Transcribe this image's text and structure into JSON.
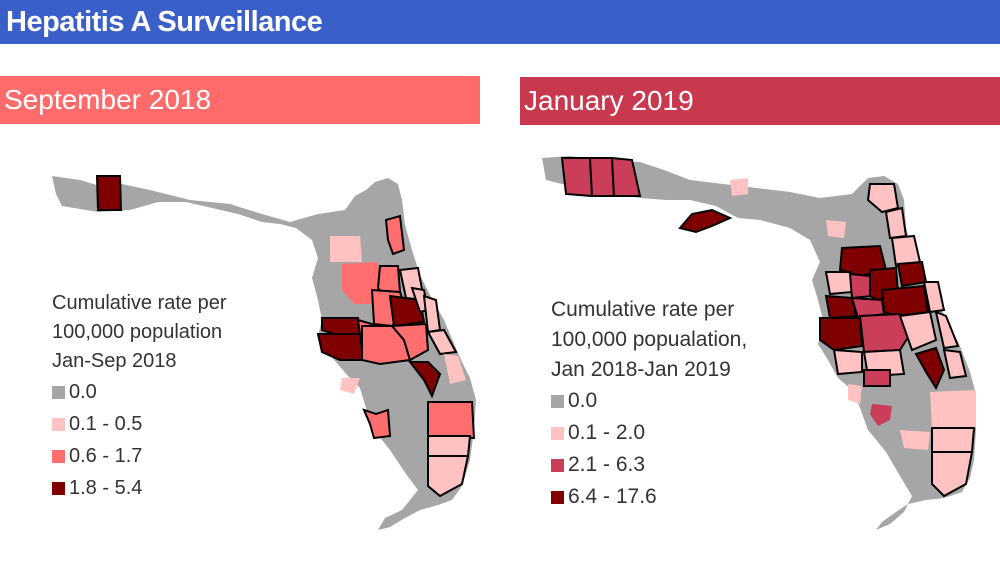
{
  "title": "Hepatitis A Surveillance",
  "colors": {
    "title_bar": "#3a5fc8",
    "left_header": "#ff6b6b",
    "right_header": "#c8384f",
    "none": "#a6a6a6",
    "light": "#ffc2c2",
    "medium": "#ff6f6f",
    "dark": "#7f0000",
    "medium_dark": "#cb3e5a"
  },
  "left_map": {
    "header": "September 2018",
    "legend": {
      "title_lines": [
        "Cumulative rate per",
        "100,000 population",
        "Jan-Sep 2018"
      ],
      "items": [
        {
          "label": "0.0",
          "color": "#a6a6a6"
        },
        {
          "label": "0.1 - 0.5",
          "color": "#ffc2c2"
        },
        {
          "label": "0.6 - 1.7",
          "color": "#ff6f6f"
        },
        {
          "label": "1.8 - 5.4",
          "color": "#7f0000"
        }
      ]
    }
  },
  "right_map": {
    "header": "January 2019",
    "legend": {
      "title_lines": [
        "Cumulative rate per",
        "100,000 popualation,",
        "Jan 2018-Jan 2019"
      ],
      "items": [
        {
          "label": "0.0",
          "color": "#a6a6a6"
        },
        {
          "label": "0.1 - 2.0",
          "color": "#ffc2c2"
        },
        {
          "label": "2.1 - 6.3",
          "color": "#cb3e5a"
        },
        {
          "label": "6.4 - 17.6",
          "color": "#7f0000"
        }
      ]
    }
  }
}
